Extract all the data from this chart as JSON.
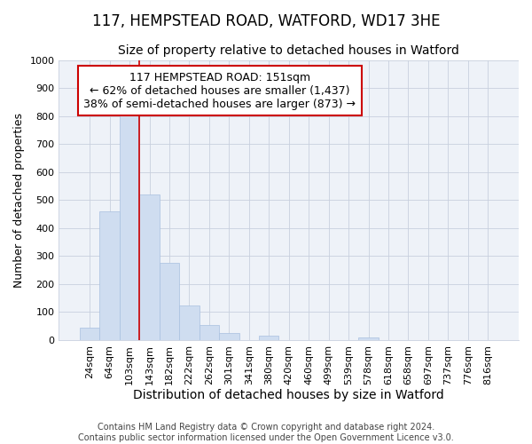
{
  "title": "117, HEMPSTEAD ROAD, WATFORD, WD17 3HE",
  "subtitle": "Size of property relative to detached houses in Watford",
  "xlabel": "Distribution of detached houses by size in Watford",
  "ylabel": "Number of detached properties",
  "categories": [
    "24sqm",
    "64sqm",
    "103sqm",
    "143sqm",
    "182sqm",
    "222sqm",
    "262sqm",
    "301sqm",
    "341sqm",
    "380sqm",
    "420sqm",
    "460sqm",
    "499sqm",
    "539sqm",
    "578sqm",
    "618sqm",
    "658sqm",
    "697sqm",
    "737sqm",
    "776sqm",
    "816sqm"
  ],
  "values": [
    45,
    460,
    810,
    520,
    275,
    125,
    55,
    25,
    0,
    15,
    0,
    0,
    0,
    0,
    10,
    0,
    0,
    0,
    0,
    0,
    0
  ],
  "bar_color": "#cfddf0",
  "bar_edge_color": "#a8c0e0",
  "vline_color": "#cc0000",
  "vline_x": 2.5,
  "ylim": [
    0,
    1000
  ],
  "yticks": [
    0,
    100,
    200,
    300,
    400,
    500,
    600,
    700,
    800,
    900,
    1000
  ],
  "annotation_line1": "117 HEMPSTEAD ROAD: 151sqm",
  "annotation_line2": "← 62% of detached houses are smaller (1,437)",
  "annotation_line3": "38% of semi-detached houses are larger (873) →",
  "annotation_box_color": "#cc0000",
  "footer_line1": "Contains HM Land Registry data © Crown copyright and database right 2024.",
  "footer_line2": "Contains public sector information licensed under the Open Government Licence v3.0.",
  "bg_color": "#ffffff",
  "plot_bg_color": "#eef2f8",
  "grid_color": "#c8d0de",
  "title_fontsize": 12,
  "subtitle_fontsize": 10,
  "xlabel_fontsize": 10,
  "ylabel_fontsize": 9,
  "tick_fontsize": 8,
  "footer_fontsize": 7,
  "annotation_fontsize": 9
}
